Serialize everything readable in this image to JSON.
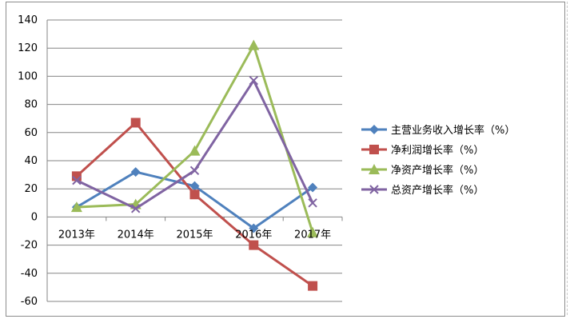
{
  "chart_data": {
    "type": "line",
    "categories": [
      "2013年",
      "2014年",
      "2015年",
      "2016年",
      "2017年"
    ],
    "ylim": [
      -60,
      140
    ],
    "yticks": [
      -60,
      -40,
      -20,
      0,
      20,
      40,
      60,
      80,
      100,
      120,
      140
    ],
    "grid": true,
    "legend_position": "right",
    "series": [
      {
        "name": "主营业务收入增长率（%）",
        "values": [
          7,
          32,
          22,
          -8,
          21
        ],
        "color": "#4f81bd",
        "marker": "diamond"
      },
      {
        "name": "净利润增长率（%）",
        "values": [
          29,
          67,
          16,
          -20,
          -49
        ],
        "color": "#c0504d",
        "marker": "square"
      },
      {
        "name": "净资产增长率（%）",
        "values": [
          7,
          9,
          47,
          122,
          -11
        ],
        "color": "#9bbb59",
        "marker": "triangle"
      },
      {
        "name": "总资产增长率（%）",
        "values": [
          26,
          6,
          33,
          97,
          10
        ],
        "color": "#8064a2",
        "marker": "x"
      }
    ]
  }
}
